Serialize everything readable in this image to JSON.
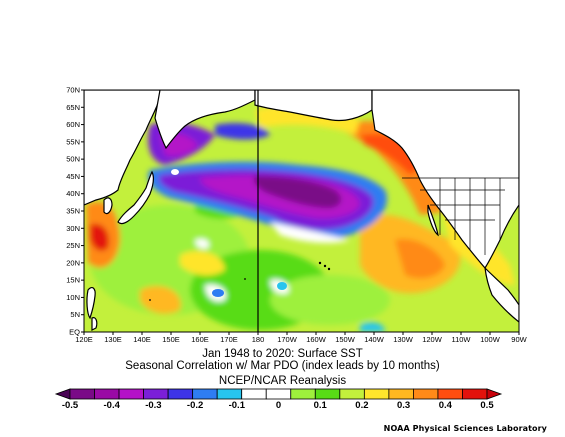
{
  "map": {
    "lat_labels": [
      "EQ",
      "5N",
      "10N",
      "15N",
      "20N",
      "25N",
      "30N",
      "35N",
      "40N",
      "45N",
      "50N",
      "55N",
      "60N",
      "65N",
      "70N"
    ],
    "lon_labels": [
      "120E",
      "130E",
      "140E",
      "150E",
      "160E",
      "170E",
      "180",
      "170W",
      "160W",
      "150W",
      "140W",
      "130W",
      "120W",
      "110W",
      "100W",
      "90W"
    ],
    "bounds": {
      "lon_min_deg_east": 120,
      "lon_max_deg_east": 270,
      "lat_min": 0,
      "lat_max": 70
    }
  },
  "title": {
    "line1": "Jan 1948 to 2020: Surface SST",
    "line2": "Seasonal Correlation w/ Mar PDO (index leads by 10 months)",
    "line3": "NCEP/NCAR Reanalysis"
  },
  "colorbar": {
    "labels": [
      "-0.5",
      "-0.4",
      "-0.3",
      "-0.2",
      "-0.1",
      "0",
      "0.1",
      "0.2",
      "0.3",
      "0.4",
      "0.5"
    ],
    "colors": [
      "#7a0a87",
      "#9a0aa5",
      "#b412c8",
      "#7b1fd8",
      "#3d34e8",
      "#2e7df2",
      "#27c4ee",
      "#ffffff",
      "#ffffff",
      "#9ef03c",
      "#58dc16",
      "#c3f03c",
      "#ffe52c",
      "#ffb820",
      "#ff8a18",
      "#ff4e10",
      "#e3120c"
    ]
  },
  "credit": "NOAA Physical Sciences Laboratory"
}
